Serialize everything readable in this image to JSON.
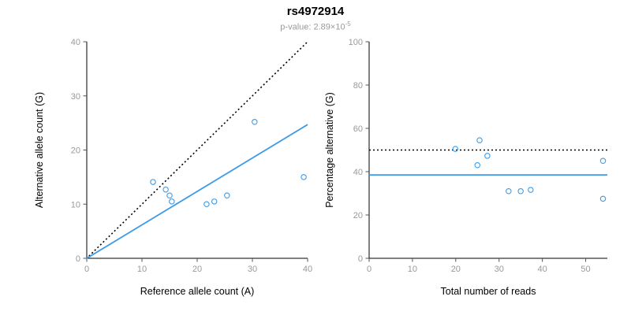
{
  "header": {
    "title": "rs4972914",
    "subtitle_base": "p-value: 2.89×10",
    "subtitle_exponent": "-5"
  },
  "style": {
    "accent_blue": "#3d9be8",
    "axis_color": "#000000",
    "tick_label_color": "#999999",
    "axis_label_color": "#000000",
    "subtitle_color": "#9a9a9a"
  },
  "chart_data": [
    {
      "name": "allele-counts-scatter",
      "type": "scatter",
      "title": "",
      "xlabel": "Reference allele count (A)",
      "ylabel": "Alternative allele count (G)",
      "xlim": [
        0,
        40
      ],
      "ylim": [
        0,
        40
      ],
      "xticks": [
        0,
        10,
        20,
        30,
        40
      ],
      "yticks": [
        0,
        10,
        20,
        30,
        40
      ],
      "grid": false,
      "legend": false,
      "point_color": "#3d9be8",
      "points": [
        [
          12,
          14.1
        ],
        [
          14.3,
          12.7
        ],
        [
          15,
          11.6
        ],
        [
          15.4,
          10.5
        ],
        [
          21.7,
          10
        ],
        [
          23.1,
          10.5
        ],
        [
          25.4,
          11.6
        ],
        [
          30.4,
          25.2
        ],
        [
          39.3,
          15
        ]
      ],
      "lines": [
        {
          "name": "identity-line",
          "style": "dotted",
          "color": "#000000",
          "from": [
            0.4,
            0.4
          ],
          "to": [
            40,
            40
          ]
        },
        {
          "name": "regression-line",
          "style": "solid",
          "color": "#3d9be8",
          "from": [
            0,
            0
          ],
          "to": [
            40,
            24.7
          ]
        }
      ]
    },
    {
      "name": "percentage-alternative-scatter",
      "type": "scatter",
      "title": "",
      "xlabel": "Total number of reads",
      "ylabel": "Percentage alternative (G)",
      "xlim": [
        0,
        55
      ],
      "ylim": [
        0,
        100
      ],
      "xticks": [
        0,
        10,
        20,
        30,
        40,
        50
      ],
      "yticks": [
        0,
        20,
        40,
        60,
        80,
        100
      ],
      "grid": false,
      "legend": false,
      "point_color": "#3d9be8",
      "points": [
        [
          19.9,
          50.5
        ],
        [
          25.5,
          54.5
        ],
        [
          25,
          43
        ],
        [
          27.3,
          47.3
        ],
        [
          32.2,
          31
        ],
        [
          35,
          31
        ],
        [
          37.3,
          31.6
        ],
        [
          54,
          45
        ],
        [
          54,
          27.5
        ]
      ],
      "lines": [
        {
          "name": "expected-50pct-line",
          "style": "dotted",
          "color": "#000000",
          "from": [
            0,
            50
          ],
          "to": [
            55,
            50
          ]
        },
        {
          "name": "mean-percentage-line",
          "style": "solid",
          "color": "#3d9be8",
          "from": [
            0,
            38.5
          ],
          "to": [
            55,
            38.5
          ]
        }
      ]
    }
  ]
}
